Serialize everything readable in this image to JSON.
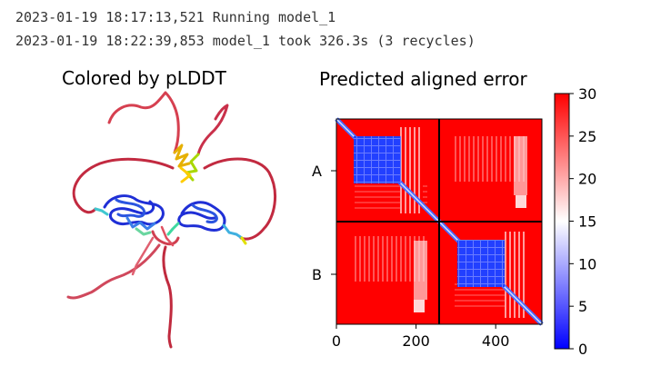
{
  "log": {
    "line1": "2023-01-19 18:17:13,521 Running model_1",
    "line2": "2023-01-19 18:22:39,853 model_1 took 326.3s (3 recycles)"
  },
  "plddt_panel": {
    "title": "Colored by pLDDT"
  },
  "pae_panel": {
    "title": "Predicted aligned error",
    "x_ticks": [
      "0",
      "200",
      "400"
    ],
    "chain_labels": [
      "A",
      "B"
    ],
    "colorbar_ticks": [
      "0",
      "5",
      "10",
      "15",
      "20",
      "25",
      "30"
    ]
  },
  "chart_data": {
    "type": "heatmap",
    "title": "Predicted aligned error",
    "x_range": [
      0,
      516
    ],
    "x_ticks": [
      0,
      200,
      400
    ],
    "chain_boundary": 258,
    "chains": [
      "A",
      "B"
    ],
    "color_range": [
      0,
      30
    ],
    "colorbar_ticks": [
      0,
      5,
      10,
      15,
      20,
      25,
      30
    ],
    "colormap": [
      "#0000ff",
      "#ffffff",
      "#ff0000"
    ]
  }
}
